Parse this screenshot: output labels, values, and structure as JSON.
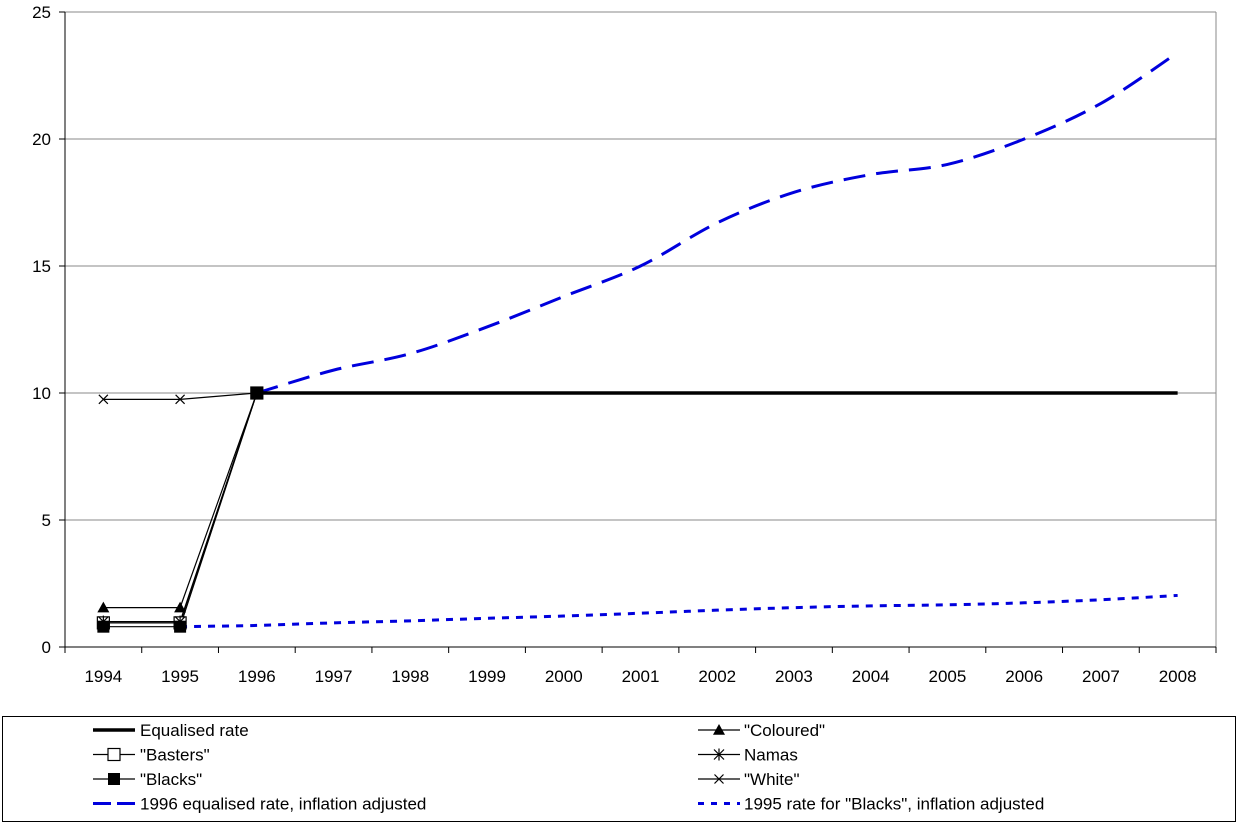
{
  "chart_data": {
    "type": "line",
    "title": "",
    "xlabel": "",
    "ylabel": "",
    "ylim": [
      0,
      25
    ],
    "yticks": [
      "0",
      "5",
      "10",
      "15",
      "20",
      "25"
    ],
    "x": [
      "1994",
      "1995",
      "1996",
      "1997",
      "1998",
      "1999",
      "2000",
      "2001",
      "2002",
      "2003",
      "2004",
      "2005",
      "2006",
      "2007",
      "2008"
    ],
    "grid": "horizontal",
    "legend_position": "bottom",
    "series": [
      {
        "name": "Equalised rate",
        "style": "thick-solid",
        "color": "#000000",
        "values": [
          null,
          null,
          10,
          10,
          10,
          10,
          10,
          10,
          10,
          10,
          10,
          10,
          10,
          10,
          10
        ]
      },
      {
        "name": "\"Coloured\"",
        "style": "solid-triangle",
        "color": "#000000",
        "values": [
          1.55,
          1.55,
          10,
          null,
          null,
          null,
          null,
          null,
          null,
          null,
          null,
          null,
          null,
          null,
          null
        ]
      },
      {
        "name": "\"Basters\"",
        "style": "solid-open-square",
        "color": "#000000",
        "values": [
          0.95,
          0.95,
          10,
          null,
          null,
          null,
          null,
          null,
          null,
          null,
          null,
          null,
          null,
          null,
          null
        ]
      },
      {
        "name": "Namas",
        "style": "solid-asterisk",
        "color": "#000000",
        "values": [
          1.0,
          1.0,
          10,
          null,
          null,
          null,
          null,
          null,
          null,
          null,
          null,
          null,
          null,
          null,
          null
        ]
      },
      {
        "name": "\"Blacks\"",
        "style": "solid-filled-square",
        "color": "#000000",
        "values": [
          0.8,
          0.8,
          10,
          null,
          null,
          null,
          null,
          null,
          null,
          null,
          null,
          null,
          null,
          null,
          null
        ]
      },
      {
        "name": "\"White\"",
        "style": "solid-x",
        "color": "#000000",
        "values": [
          9.75,
          9.75,
          10,
          null,
          null,
          null,
          null,
          null,
          null,
          null,
          null,
          null,
          null,
          null,
          null
        ]
      },
      {
        "name": "1996 equalised rate, inflation adjusted",
        "style": "long-dash",
        "color": "#0000dd",
        "values": [
          null,
          null,
          10,
          10.9,
          11.55,
          12.6,
          13.8,
          15.0,
          16.7,
          17.9,
          18.6,
          19.0,
          20.0,
          21.4,
          23.4
        ]
      },
      {
        "name": "1995 rate for \"Blacks\", inflation adjusted",
        "style": "short-dash",
        "color": "#0000dd",
        "values": [
          null,
          0.8,
          0.85,
          0.95,
          1.03,
          1.13,
          1.22,
          1.33,
          1.45,
          1.55,
          1.62,
          1.66,
          1.74,
          1.86,
          2.03
        ]
      }
    ]
  }
}
